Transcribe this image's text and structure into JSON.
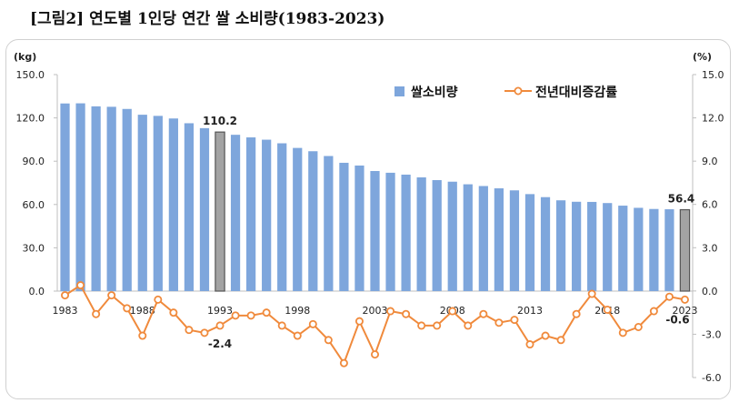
{
  "title": "[그림2] 연도별 1인당 연간 쌀 소비량(1983-2023)",
  "chart_data": {
    "type": "bar+line",
    "left_unit": "(kg)",
    "right_unit": "(%)",
    "left_ticks": [
      "150.0",
      "120.0",
      "90.0",
      "60.0",
      "30.0",
      "0.0"
    ],
    "right_ticks": [
      "15.0",
      "12.0",
      "9.0",
      "6.0",
      "3.0",
      "0.0",
      "-3.0",
      "-6.0"
    ],
    "ylim_left": [
      0,
      150
    ],
    "ylim_right": [
      -6,
      15
    ],
    "x_tick_labels": [
      "1983",
      "1988",
      "1993",
      "1998",
      "2003",
      "2008",
      "2013",
      "2018",
      "2023"
    ],
    "years": [
      1983,
      1984,
      1985,
      1986,
      1987,
      1988,
      1989,
      1990,
      1991,
      1992,
      1993,
      1994,
      1995,
      1996,
      1997,
      1998,
      1999,
      2000,
      2001,
      2002,
      2003,
      2004,
      2005,
      2006,
      2007,
      2008,
      2009,
      2010,
      2011,
      2012,
      2013,
      2014,
      2015,
      2016,
      2017,
      2018,
      2019,
      2020,
      2021,
      2022,
      2023
    ],
    "series": [
      {
        "name": "쌀소비량",
        "type": "bar",
        "axis": "left",
        "color": "#7ea6dc",
        "values": [
          130.0,
          130.1,
          128.0,
          127.7,
          126.2,
          122.2,
          121.4,
          119.6,
          116.3,
          112.9,
          110.2,
          108.3,
          106.5,
          104.9,
          102.4,
          99.2,
          96.9,
          93.6,
          88.9,
          87.0,
          83.2,
          82.0,
          80.7,
          78.8,
          76.9,
          75.8,
          74.0,
          72.8,
          71.2,
          69.8,
          67.2,
          65.1,
          62.9,
          61.9,
          61.8,
          61.0,
          59.2,
          57.7,
          56.9,
          56.7,
          56.4
        ],
        "highlight_color": "#a3a3a3"
      },
      {
        "name": "전년대비증감률",
        "type": "line",
        "axis": "right",
        "color": "#f08a3c",
        "values": [
          -0.3,
          0.4,
          -1.6,
          -0.3,
          -1.2,
          -3.1,
          -0.6,
          -1.5,
          -2.7,
          -2.9,
          -2.4,
          -1.7,
          -1.7,
          -1.5,
          -2.4,
          -3.1,
          -2.3,
          -3.4,
          -5.0,
          -2.1,
          -4.4,
          -1.4,
          -1.6,
          -2.4,
          -2.4,
          -1.4,
          -2.4,
          -1.6,
          -2.2,
          -2.0,
          -3.7,
          -3.1,
          -3.4,
          -1.6,
          -0.2,
          -1.3,
          -2.9,
          -2.5,
          -1.4,
          -0.4,
          -0.6
        ]
      }
    ],
    "annotations": [
      {
        "label": "110.2"
      },
      {
        "label": "-2.4"
      },
      {
        "label": "56.4"
      },
      {
        "label": "-0.6"
      }
    ],
    "legend_position": "top-right"
  }
}
